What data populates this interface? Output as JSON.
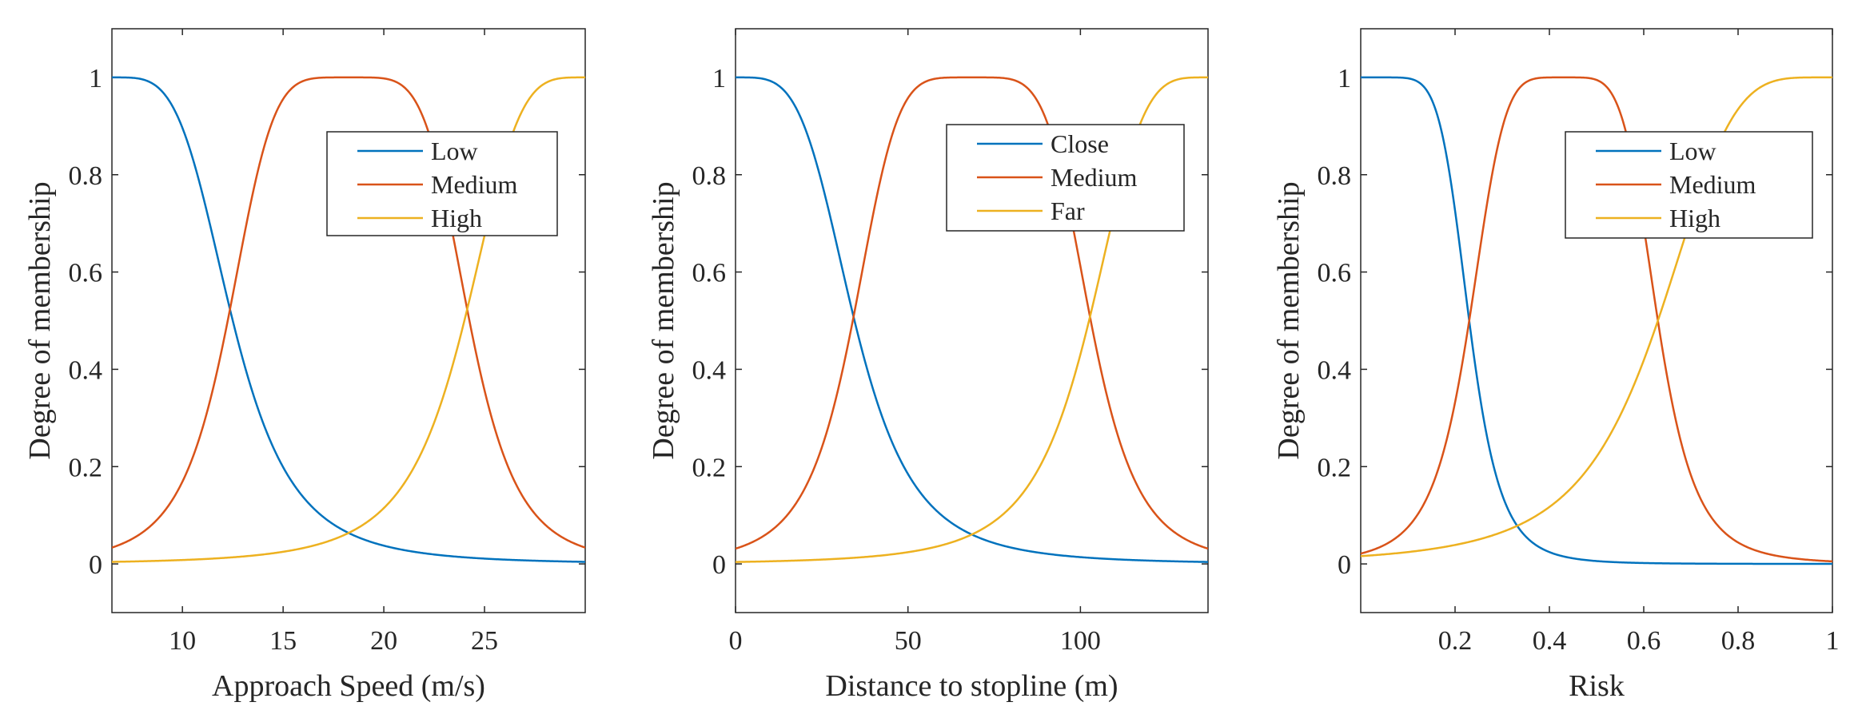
{
  "colors": {
    "series1": "#0072BD",
    "series2": "#D95319",
    "series3": "#EDB120",
    "axis": "#262626"
  },
  "chart_data": [
    {
      "type": "line",
      "xlabel": "Approach Speed (m/s)",
      "ylabel": "Degree of membership",
      "xlim": [
        6.5,
        30
      ],
      "ylim": [
        -0.1,
        1.1
      ],
      "xticks": [
        10,
        15,
        20,
        25
      ],
      "xtick_labels": [
        "10",
        "15",
        "20",
        "25"
      ],
      "yticks": [
        0,
        0.2,
        0.4,
        0.6,
        0.8,
        1
      ],
      "ytick_labels": [
        "0",
        "0.2",
        "0.4",
        "0.6",
        "0.8",
        "1"
      ],
      "legend": {
        "position": "top-right",
        "entries": [
          "Low",
          "Medium",
          "High"
        ]
      },
      "series": [
        {
          "name": "Low",
          "mf": "gbell",
          "params": [
            6,
            2,
            6.5
          ]
        },
        {
          "name": "Medium",
          "mf": "gbell",
          "params": [
            6,
            2.5,
            18.25
          ]
        },
        {
          "name": "High",
          "mf": "gbell",
          "params": [
            6,
            2,
            30
          ]
        }
      ]
    },
    {
      "type": "line",
      "xlabel": "Distance to stopline (m)",
      "ylabel": "Degree of membership",
      "xlim": [
        0,
        137
      ],
      "ylim": [
        -0.1,
        1.1
      ],
      "xticks": [
        0,
        50,
        100
      ],
      "xtick_labels": [
        "0",
        "50",
        "100"
      ],
      "yticks": [
        0,
        0.2,
        0.4,
        0.6,
        0.8,
        1
      ],
      "ytick_labels": [
        "0",
        "0.2",
        "0.4",
        "0.6",
        "0.8",
        "1"
      ],
      "legend": {
        "position": "top-right",
        "entries": [
          "Close",
          "Medium",
          "Far"
        ]
      },
      "series": [
        {
          "name": "Close",
          "mf": "gbell",
          "params": [
            34.5,
            2,
            0
          ]
        },
        {
          "name": "Medium",
          "mf": "gbell",
          "params": [
            34.5,
            2.5,
            68.5
          ]
        },
        {
          "name": "Far",
          "mf": "gbell",
          "params": [
            34.5,
            2,
            137
          ]
        }
      ]
    },
    {
      "type": "line",
      "xlabel": "Risk",
      "ylabel": "Degree of membership",
      "xlim": [
        0,
        1
      ],
      "ylim": [
        -0.1,
        1.1
      ],
      "xticks": [
        0.2,
        0.4,
        0.6,
        0.8,
        1
      ],
      "xtick_labels": [
        "0.2",
        "0.4",
        "0.6",
        "0.8",
        "1"
      ],
      "yticks": [
        0,
        0.2,
        0.4,
        0.6,
        0.8,
        1
      ],
      "ytick_labels": [
        "0",
        "0.2",
        "0.4",
        "0.6",
        "0.8",
        "1"
      ],
      "legend": {
        "position": "top-right",
        "entries": [
          "Low",
          "Medium",
          "High"
        ]
      },
      "series": [
        {
          "name": "Low",
          "mf": "gbell",
          "params": [
            0.2,
            3,
            0.03
          ]
        },
        {
          "name": "Medium",
          "mf": "gbell",
          "params": [
            0.2,
            2.5,
            0.43
          ]
        },
        {
          "name": "High",
          "mf": "gbell",
          "params": [
            0.35,
            2,
            0.98
          ]
        }
      ]
    }
  ]
}
